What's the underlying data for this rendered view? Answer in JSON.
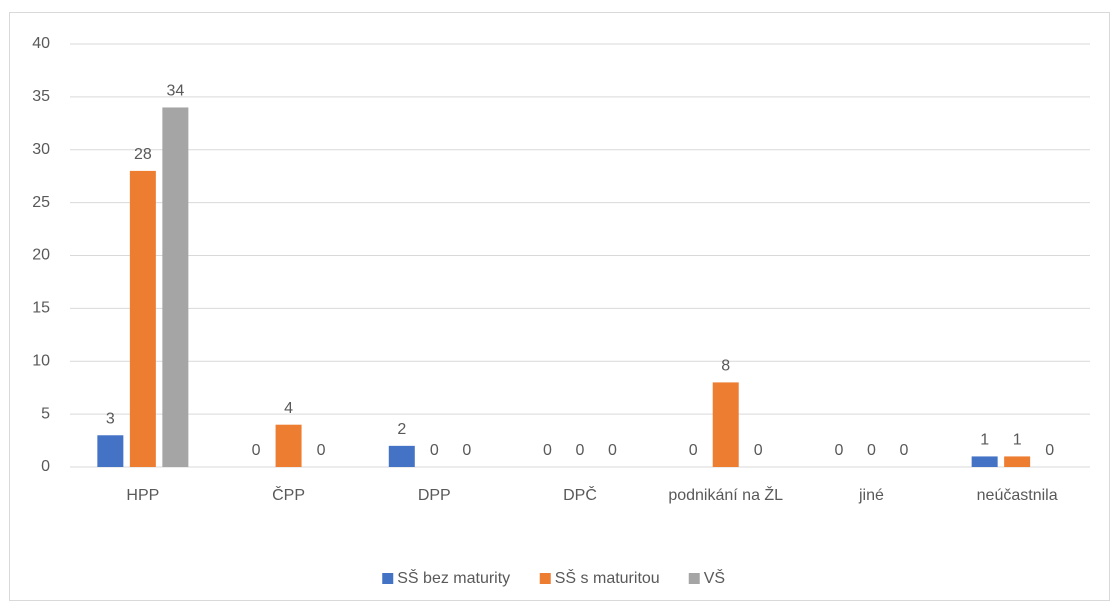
{
  "chart_data": {
    "type": "bar",
    "categories": [
      "HPP",
      "ČPP",
      "DPP",
      "DPČ",
      "podnikání na ŽL",
      "jiné",
      "neúčastnila"
    ],
    "series": [
      {
        "name": "SŠ bez maturity",
        "color": "#4472c4",
        "values": [
          3,
          0,
          2,
          0,
          0,
          0,
          1
        ]
      },
      {
        "name": "SŠ s maturitou",
        "color": "#ed7d31",
        "values": [
          28,
          4,
          0,
          0,
          8,
          0,
          1
        ]
      },
      {
        "name": "VŠ",
        "color": "#a5a5a5",
        "values": [
          34,
          0,
          0,
          0,
          0,
          0,
          0
        ]
      }
    ],
    "ylim": [
      0,
      40
    ],
    "yticks": [
      0,
      5,
      10,
      15,
      20,
      25,
      30,
      35,
      40
    ],
    "grid": true,
    "legend": "bottom"
  }
}
